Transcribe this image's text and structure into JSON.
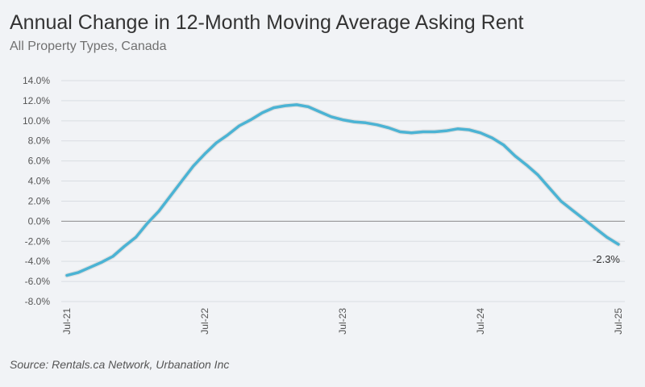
{
  "chart_data": {
    "type": "line",
    "title": "Annual Change in 12-Month Moving Average Asking Rent",
    "subtitle": "All Property Types, Canada",
    "source": "Source: Rentals.ca Network, Urbanation Inc",
    "xlabel": "",
    "ylabel": "",
    "ylim": [
      -8,
      14
    ],
    "yticks": [
      14,
      12,
      10,
      8,
      6,
      4,
      2,
      0,
      -2,
      -4,
      -6,
      -8
    ],
    "ytick_labels": [
      "14.0%",
      "12.0%",
      "10.0%",
      "8.0%",
      "6.0%",
      "4.0%",
      "2.0%",
      "0.0%",
      "-2.0%",
      "-4.0%",
      "-6.0%",
      "-8.0%"
    ],
    "x_ticks": [
      {
        "index": 0,
        "label": "Jul-21"
      },
      {
        "index": 12,
        "label": "Jul-22"
      },
      {
        "index": 24,
        "label": "Jul-23"
      },
      {
        "index": 36,
        "label": "Jul-24"
      },
      {
        "index": 48,
        "label": "Jul-25"
      }
    ],
    "grid": true,
    "series": [
      {
        "name": "Annual Change",
        "color": "#4bb3d4",
        "values": [
          -5.4,
          -5.1,
          -4.6,
          -4.1,
          -3.5,
          -2.5,
          -1.6,
          -0.2,
          1.0,
          2.5,
          4.0,
          5.5,
          6.7,
          7.8,
          8.6,
          9.5,
          10.1,
          10.8,
          11.3,
          11.5,
          11.6,
          11.4,
          10.9,
          10.4,
          10.1,
          9.9,
          9.8,
          9.6,
          9.3,
          8.9,
          8.8,
          8.9,
          8.9,
          9.0,
          9.2,
          9.1,
          8.8,
          8.3,
          7.6,
          6.5,
          5.6,
          4.6,
          3.3,
          2.0,
          1.1,
          0.2,
          -0.7,
          -1.6,
          -2.3
        ]
      }
    ],
    "annotations": [
      {
        "index": 48,
        "value": -2.3,
        "label": "-2.3%"
      }
    ]
  }
}
